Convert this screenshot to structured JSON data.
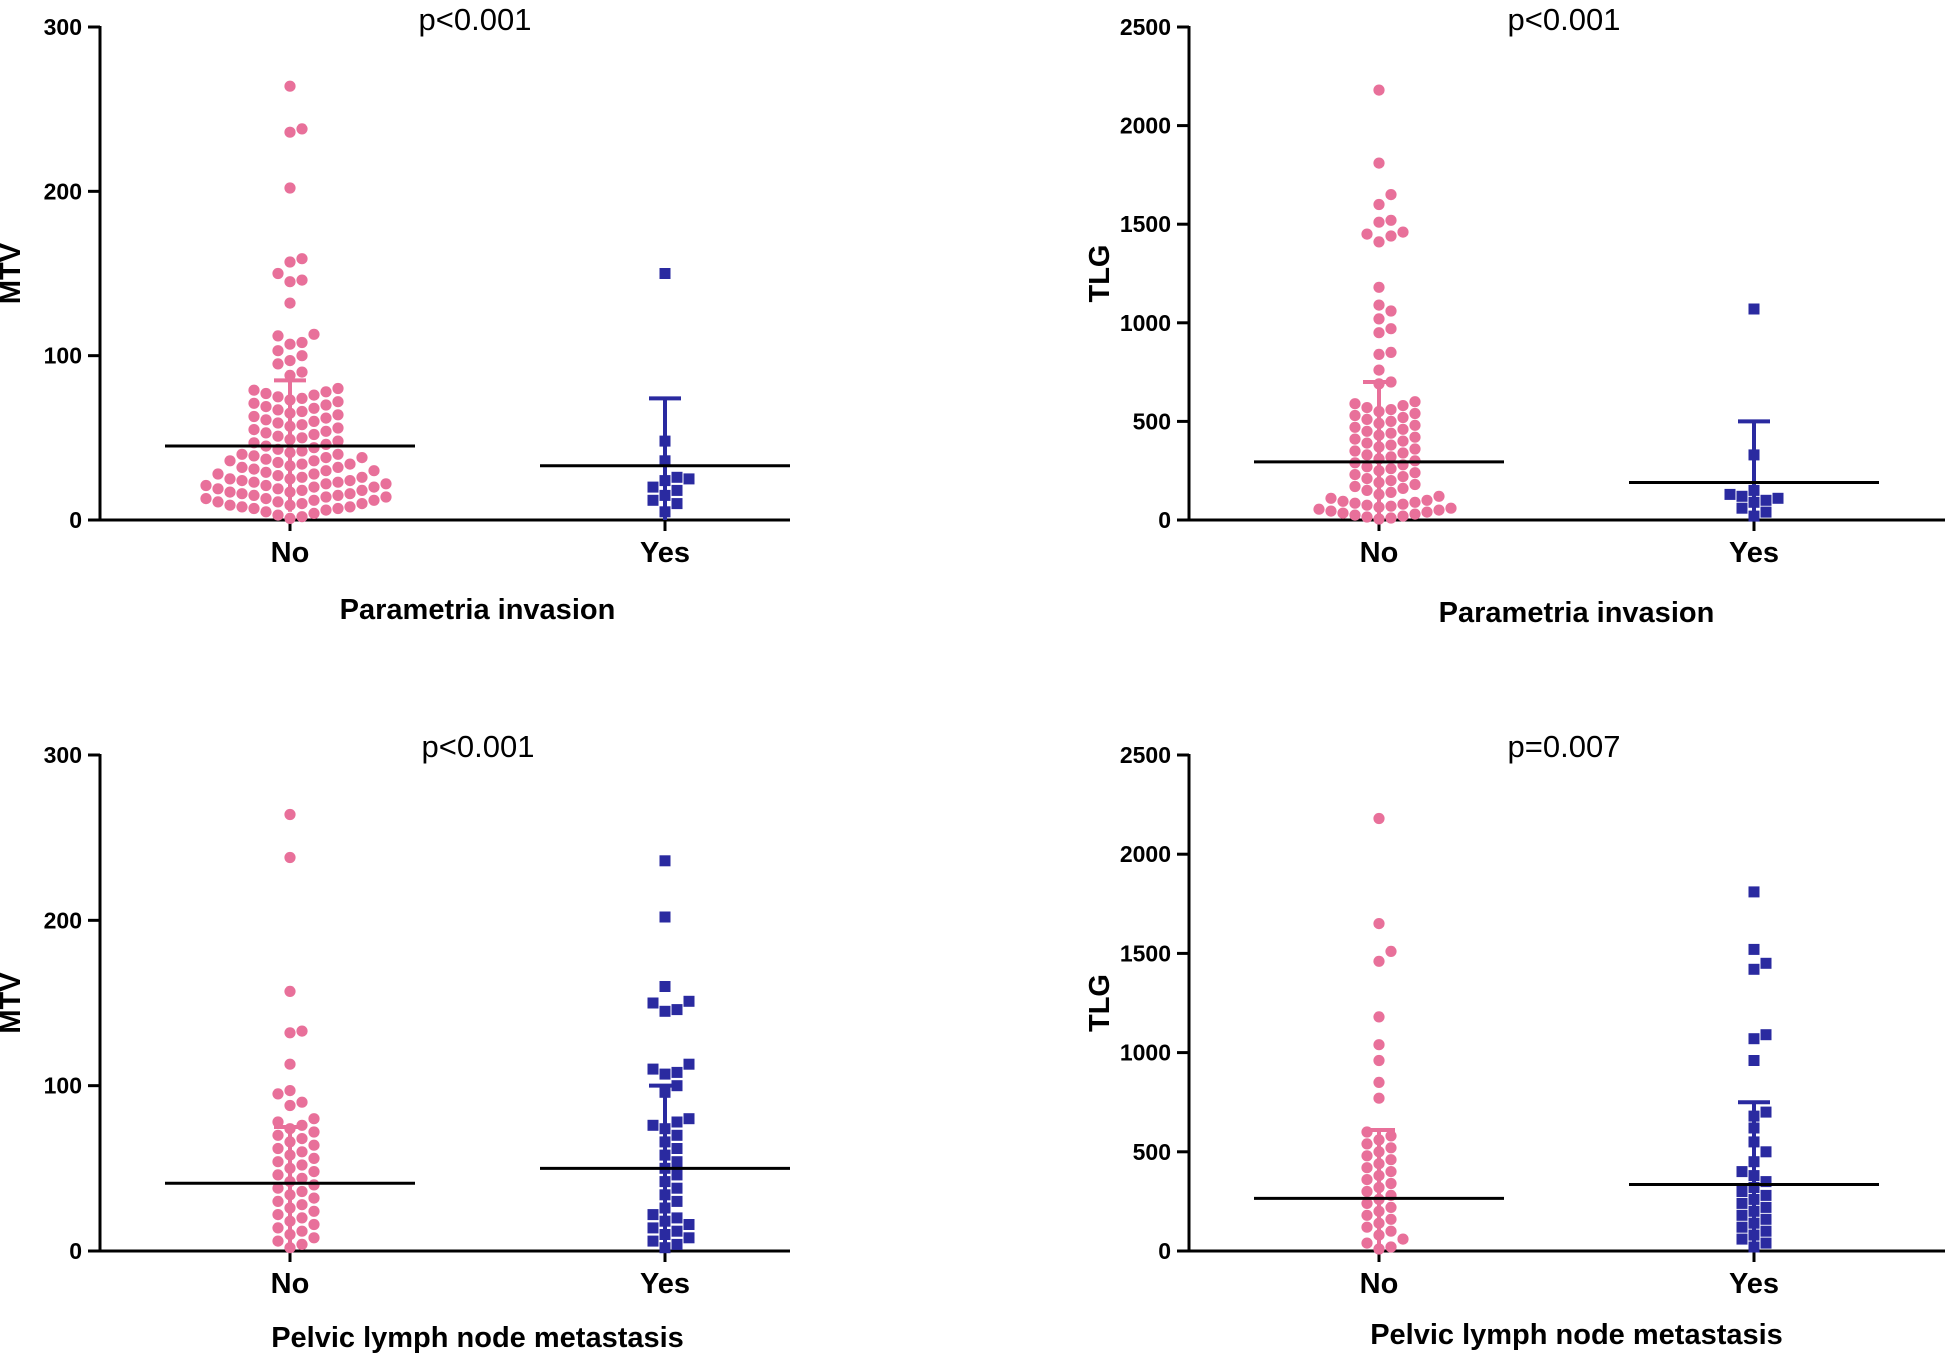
{
  "chart_data": [
    {
      "type": "scatter",
      "title": "p<0.001",
      "ylabel": "MTV",
      "xlabel": "Parametria invasion",
      "ylim": [
        0,
        300
      ],
      "yticks": [
        "0",
        "100",
        "200",
        "300"
      ],
      "categories": [
        "No",
        "Yes"
      ],
      "colors": [
        "#e8709a",
        "#2a2aa0"
      ],
      "series": [
        {
          "name": "No",
          "marker": "circle",
          "mean": 45,
          "sd_low": 5,
          "sd_high": 85,
          "values": [
            264,
            238,
            236,
            202,
            159,
            157,
            150,
            146,
            145,
            132,
            113,
            112,
            108,
            107,
            103,
            100,
            97,
            95,
            90,
            88,
            80,
            79,
            78,
            77,
            76,
            75,
            74,
            73,
            72,
            71,
            70,
            69,
            68,
            67,
            66,
            65,
            64,
            63,
            62,
            61,
            60,
            59,
            58,
            57,
            56,
            55,
            54,
            53,
            52,
            51,
            50,
            49,
            48,
            47,
            46,
            45,
            44,
            43,
            42,
            41,
            40,
            40,
            39,
            38,
            38,
            37,
            36,
            36,
            35,
            34,
            34,
            33,
            32,
            32,
            31,
            30,
            30,
            29,
            28,
            28,
            27,
            26,
            26,
            25,
            25,
            24,
            24,
            23,
            23,
            22,
            22,
            21,
            21,
            20,
            20,
            19,
            19,
            18,
            18,
            17,
            17,
            16,
            16,
            15,
            15,
            14,
            14,
            13,
            13,
            12,
            12,
            11,
            11,
            10,
            10,
            9,
            9,
            8,
            8,
            7,
            7,
            6,
            5,
            4,
            3,
            2,
            1
          ]
        },
        {
          "name": "Yes",
          "marker": "square",
          "mean": 33,
          "sd_low": 0,
          "sd_high": 74,
          "values": [
            150,
            48,
            36,
            26,
            25,
            24,
            20,
            18,
            15,
            12,
            10,
            5
          ]
        }
      ]
    },
    {
      "type": "scatter",
      "title": "p<0.001",
      "ylabel": "TLG",
      "xlabel": "Parametria invasion",
      "ylim": [
        0,
        2500
      ],
      "yticks": [
        "0",
        "500",
        "1000",
        "1500",
        "2000",
        "2500"
      ],
      "categories": [
        "No",
        "Yes"
      ],
      "colors": [
        "#e8709a",
        "#2a2aa0"
      ],
      "series": [
        {
          "name": "No",
          "marker": "circle",
          "mean": 295,
          "sd_low": 20,
          "sd_high": 700,
          "values": [
            2180,
            1810,
            1650,
            1600,
            1520,
            1510,
            1460,
            1450,
            1440,
            1410,
            1180,
            1090,
            1060,
            1020,
            970,
            950,
            850,
            840,
            760,
            700,
            690,
            600,
            590,
            580,
            570,
            560,
            550,
            540,
            530,
            520,
            510,
            500,
            490,
            480,
            470,
            460,
            450,
            440,
            430,
            420,
            410,
            400,
            390,
            380,
            370,
            360,
            350,
            340,
            330,
            320,
            310,
            300,
            290,
            280,
            270,
            260,
            250,
            240,
            230,
            220,
            210,
            200,
            190,
            180,
            170,
            160,
            150,
            140,
            130,
            120,
            110,
            100,
            95,
            90,
            85,
            80,
            75,
            70,
            65,
            60,
            55,
            50,
            45,
            40,
            35,
            30,
            25,
            20,
            15,
            10,
            5
          ]
        },
        {
          "name": "Yes",
          "marker": "square",
          "mean": 190,
          "sd_low": 0,
          "sd_high": 500,
          "values": [
            1070,
            330,
            150,
            130,
            120,
            110,
            100,
            90,
            60,
            40,
            20
          ]
        }
      ]
    },
    {
      "type": "scatter",
      "title": "p<0.001",
      "ylabel": "MTV",
      "xlabel": "Pelvic lymph node metastasis",
      "ylim": [
        0,
        300
      ],
      "yticks": [
        "0",
        "100",
        "200",
        "300"
      ],
      "categories": [
        "No",
        "Yes"
      ],
      "colors": [
        "#e8709a",
        "#2a2aa0"
      ],
      "series": [
        {
          "name": "No",
          "marker": "circle",
          "mean": 41,
          "sd_low": 5,
          "sd_high": 75,
          "values": [
            264,
            238,
            157,
            133,
            132,
            113,
            97,
            95,
            90,
            88,
            80,
            78,
            76,
            74,
            72,
            70,
            68,
            66,
            64,
            62,
            60,
            58,
            56,
            54,
            52,
            50,
            48,
            46,
            44,
            42,
            40,
            38,
            36,
            34,
            32,
            30,
            28,
            26,
            24,
            22,
            20,
            18,
            16,
            14,
            12,
            10,
            8,
            6,
            4,
            2
          ]
        },
        {
          "name": "Yes",
          "marker": "square",
          "mean": 50,
          "sd_low": 3,
          "sd_high": 100,
          "values": [
            236,
            202,
            160,
            151,
            150,
            146,
            145,
            113,
            110,
            108,
            107,
            100,
            96,
            80,
            78,
            76,
            74,
            70,
            66,
            62,
            58,
            54,
            50,
            46,
            42,
            38,
            34,
            30,
            26,
            22,
            20,
            18,
            16,
            14,
            12,
            10,
            8,
            6,
            4,
            2
          ]
        }
      ]
    },
    {
      "type": "scatter",
      "title": "p=0.007",
      "ylabel": "TLG",
      "xlabel": "Pelvic lymph node metastasis",
      "ylim": [
        0,
        2500
      ],
      "yticks": [
        "0",
        "500",
        "1000",
        "1500",
        "2000",
        "2500"
      ],
      "categories": [
        "No",
        "Yes"
      ],
      "colors": [
        "#e8709a",
        "#2a2aa0"
      ],
      "series": [
        {
          "name": "No",
          "marker": "circle",
          "mean": 265,
          "sd_low": 20,
          "sd_high": 610,
          "values": [
            2180,
            1650,
            1510,
            1460,
            1180,
            1040,
            960,
            850,
            770,
            600,
            580,
            560,
            540,
            520,
            500,
            480,
            460,
            440,
            420,
            400,
            380,
            360,
            340,
            320,
            300,
            280,
            260,
            240,
            220,
            200,
            180,
            160,
            140,
            120,
            100,
            80,
            60,
            40,
            20,
            10
          ]
        },
        {
          "name": "Yes",
          "marker": "square",
          "mean": 335,
          "sd_low": 0,
          "sd_high": 750,
          "values": [
            1810,
            1520,
            1450,
            1420,
            1090,
            1070,
            960,
            700,
            680,
            620,
            550,
            500,
            450,
            400,
            380,
            350,
            320,
            300,
            280,
            260,
            240,
            220,
            200,
            180,
            160,
            140,
            120,
            100,
            80,
            60,
            40,
            20
          ]
        }
      ]
    }
  ]
}
